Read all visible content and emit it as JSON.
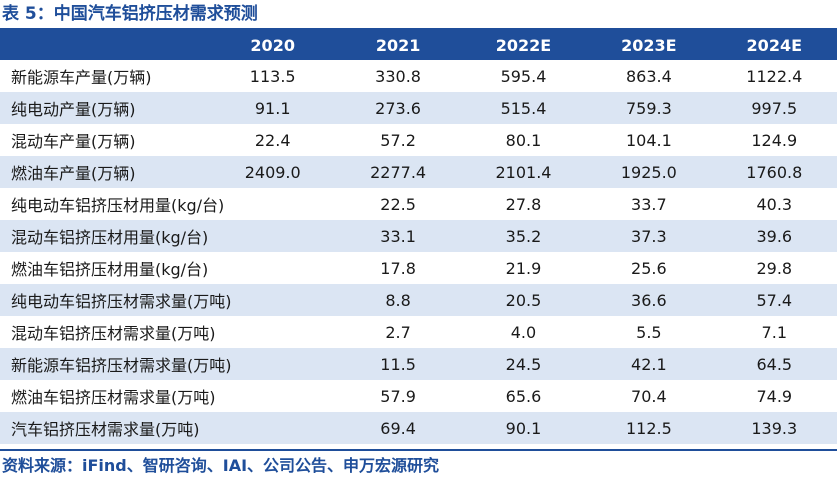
{
  "title": "表 5：中国汽车铝挤压材需求预测",
  "table": {
    "headers": [
      "",
      "2020",
      "2021",
      "2022E",
      "2023E",
      "2024E"
    ],
    "rows": [
      [
        "新能源车产量(万辆)",
        "113.5",
        "330.8",
        "595.4",
        "863.4",
        "1122.4"
      ],
      [
        "纯电动产量(万辆)",
        "91.1",
        "273.6",
        "515.4",
        "759.3",
        "997.5"
      ],
      [
        "混动车产量(万辆)",
        "22.4",
        "57.2",
        "80.1",
        "104.1",
        "124.9"
      ],
      [
        "燃油车产量(万辆)",
        "2409.0",
        "2277.4",
        "2101.4",
        "1925.0",
        "1760.8"
      ],
      [
        "纯电动车铝挤压材用量(kg/台)",
        "22.5",
        "27.8",
        "33.7",
        "40.3",
        ""
      ],
      [
        "混动车铝挤压材用量(kg/台)",
        "33.1",
        "35.2",
        "37.3",
        "39.6",
        ""
      ],
      [
        "燃油车铝挤压材用量(kg/台)",
        "17.8",
        "21.9",
        "25.6",
        "29.8",
        ""
      ],
      [
        "纯电动车铝挤压材需求量(万吨)",
        "8.8",
        "20.5",
        "36.6",
        "57.4",
        ""
      ],
      [
        "混动车铝挤压材需求量(万吨)",
        "2.7",
        "4.0",
        "5.5",
        "7.1",
        ""
      ],
      [
        "新能源车铝挤压材需求量(万吨)",
        "11.5",
        "24.5",
        "42.1",
        "64.5",
        ""
      ],
      [
        "燃油车铝挤压材需求量(万吨)",
        "57.9",
        "65.6",
        "70.4",
        "74.9",
        ""
      ],
      [
        "汽车铝挤压材需求量(万吨)",
        "69.4",
        "90.1",
        "112.5",
        "139.3",
        ""
      ]
    ]
  },
  "source": "资料来源：iFind、智研咨询、IAI、公司公告、申万宏源研究",
  "colors": {
    "header_bg": "#1f4e9a",
    "stripe": "#dbe5f3",
    "title": "#1f4e9a"
  }
}
